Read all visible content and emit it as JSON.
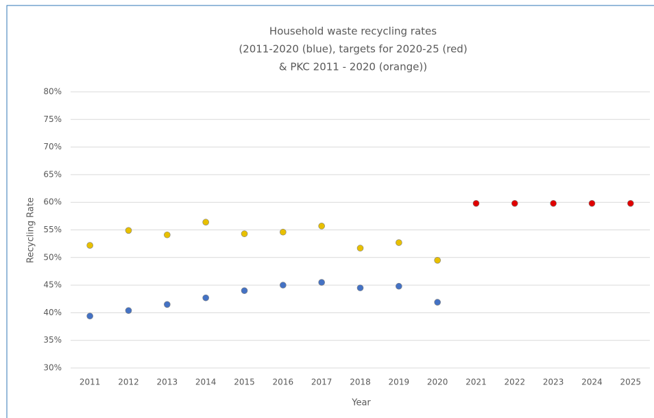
{
  "chart_data": {
    "type": "scatter",
    "title": [
      "Household waste recycling rates",
      "(2011-2020 (blue), targets for 2020-25 (red)",
      "& PKC 2011 - 2020 (orange))"
    ],
    "x_label": "Year",
    "y_label": "Recycling Rate",
    "categories": [
      "2011",
      "2012",
      "2013",
      "2014",
      "2015",
      "2016",
      "2017",
      "2018",
      "2019",
      "2020",
      "2021",
      "2022",
      "2023",
      "2024",
      "2025"
    ],
    "series": [
      {
        "color": "#4472c4",
        "values": [
          39.4,
          40.4,
          41.5,
          42.7,
          44.0,
          45.0,
          45.5,
          44.5,
          44.8,
          41.9,
          null,
          null,
          null,
          null,
          null
        ]
      },
      {
        "color": "#e8c000",
        "values": [
          52.2,
          54.9,
          54.1,
          56.4,
          54.3,
          54.6,
          55.7,
          51.7,
          52.7,
          49.5,
          null,
          null,
          null,
          null,
          null
        ]
      },
      {
        "color": "#e00000",
        "values": [
          null,
          null,
          null,
          null,
          null,
          null,
          null,
          null,
          null,
          null,
          59.8,
          59.8,
          59.8,
          59.8,
          59.8
        ]
      }
    ],
    "ylim": [
      30,
      80
    ],
    "yticks": [
      {
        "value": 30,
        "label": "30%"
      },
      {
        "value": 35,
        "label": "35%"
      },
      {
        "value": 40,
        "label": "40%"
      },
      {
        "value": 45,
        "label": "45%"
      },
      {
        "value": 50,
        "label": "50%"
      },
      {
        "value": 55,
        "label": "55%"
      },
      {
        "value": 60,
        "label": "60%"
      },
      {
        "value": 65,
        "label": "65%"
      },
      {
        "value": 70,
        "label": "70%"
      },
      {
        "value": 75,
        "label": "75%"
      },
      {
        "value": 80,
        "label": "80%"
      }
    ],
    "grid": true
  }
}
